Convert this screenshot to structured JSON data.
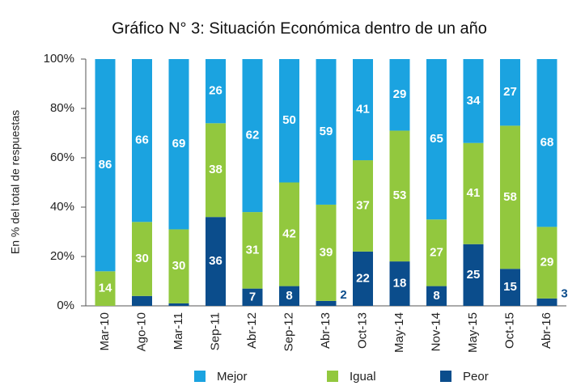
{
  "chart_data": {
    "type": "stacked_bar",
    "title": "Gráfico N° 3: Situación Económica dentro de un año",
    "y_label": "En % del total de respuestas",
    "categories": [
      "Mar-10",
      "Ago-10",
      "Mar-11",
      "Sep-11",
      "Abr-12",
      "Sep-12",
      "Abr-13",
      "Oct-13",
      "May-14",
      "Nov-14",
      "May-15",
      "Oct-15",
      "Abr-16"
    ],
    "series": [
      {
        "name": "Peor",
        "color": "#0b4d8c",
        "values": [
          0,
          4,
          1,
          36,
          7,
          8,
          2,
          22,
          18,
          8,
          25,
          15,
          3
        ],
        "value_labels": [
          null,
          null,
          null,
          "36",
          "7",
          "8",
          "2",
          "22",
          "18",
          "8",
          "25",
          "15",
          "3"
        ]
      },
      {
        "name": "Igual",
        "color": "#92c83e",
        "values": [
          14,
          30,
          30,
          38,
          31,
          42,
          39,
          37,
          53,
          27,
          41,
          58,
          29
        ]
      },
      {
        "name": "Mejor",
        "color": "#1ba3e0",
        "values": [
          86,
          66,
          69,
          26,
          62,
          50,
          59,
          41,
          29,
          65,
          34,
          27,
          68
        ]
      }
    ],
    "ylim": [
      0,
      100
    ],
    "yticks": [
      {
        "value": 0,
        "label": "0%"
      },
      {
        "value": 20,
        "label": "20%"
      },
      {
        "value": 40,
        "label": "40%"
      },
      {
        "value": 60,
        "label": "60%"
      },
      {
        "value": 80,
        "label": "80%"
      },
      {
        "value": 100,
        "label": "100%"
      }
    ],
    "legend": "bottom",
    "grid": false
  }
}
